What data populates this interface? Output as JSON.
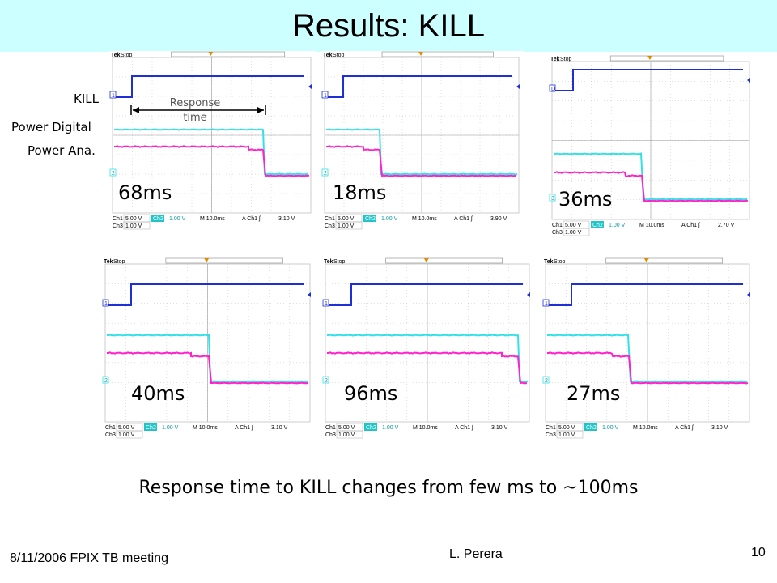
{
  "slide": {
    "title": "Results: KILL",
    "signal_labels": [
      "KILL",
      "Power Digital",
      "Power Ana."
    ],
    "response_annotation": [
      "Response",
      "time"
    ],
    "summary": "Response time to KILL  changes from few ms to ~100ms",
    "footer": {
      "date_meeting": "8/11/2006  FPIX TB meeting",
      "author": "L. Perera",
      "page": "10"
    }
  },
  "colors": {
    "title_bg": "#ccffff",
    "kill_trace": "#1f2fd6",
    "digital_trace": "#33e0e8",
    "analog_trace": "#ff22cc",
    "grid": "#c0c0c0"
  },
  "scopes": [
    {
      "response_time": "68ms",
      "header": {
        "brand": "Tek",
        "state": "Stop"
      },
      "markers": [
        "1",
        "2"
      ],
      "readout": {
        "ch1": "Ch1",
        "ch1_scale": "5.00 V",
        "ch2": "Ch2",
        "ch2_scale": "1.00 V",
        "timebase": "M 10.0ms",
        "trigger": "A  Ch1  ʃ",
        "level": "3.10 V",
        "ch3": "Ch3",
        "ch3_scale": "1.00 V"
      }
    },
    {
      "response_time": "18ms",
      "header": {
        "brand": "Tek",
        "state": "Stop"
      },
      "markers": [
        "1",
        "2"
      ],
      "readout": {
        "ch1": "Ch1",
        "ch1_scale": "5.00 V",
        "ch2": "Ch2",
        "ch2_scale": "1.00 V",
        "timebase": "M 10.0ms",
        "trigger": "A  Ch1  ʃ",
        "level": "3.90 V",
        "ch3": "Ch3",
        "ch3_scale": "1.00 V"
      }
    },
    {
      "response_time": "36ms",
      "header": {
        "brand": "Tek",
        "state": "Stop"
      },
      "markers": [
        "D",
        "3"
      ],
      "readout": {
        "ch1": "Ch1",
        "ch1_scale": "5.00 V",
        "ch2": "Ch2",
        "ch2_scale": "1.00 V",
        "timebase": "M 10.0ms",
        "trigger": "A  Ch1  ʃ",
        "level": "2.70 V",
        "ch3": "Ch3",
        "ch3_scale": "1.00 V"
      }
    },
    {
      "response_time": "40ms",
      "header": {
        "brand": "Tek",
        "state": "Stop"
      },
      "markers": [
        "1",
        "2"
      ],
      "readout": {
        "ch1": "Ch1",
        "ch1_scale": "5.00 V",
        "ch2": "Ch2",
        "ch2_scale": "1.00 V",
        "timebase": "M 10.0ms",
        "trigger": "A  Ch1  ʃ",
        "level": "3.10 V",
        "ch3": "Ch3",
        "ch3_scale": "1.00 V"
      }
    },
    {
      "response_time": "96ms",
      "header": {
        "brand": "Tek",
        "state": "Stop"
      },
      "markers": [
        "1",
        "2"
      ],
      "readout": {
        "ch1": "Ch1",
        "ch1_scale": "5.00 V",
        "ch2": "Ch2",
        "ch2_scale": "1.00 V",
        "timebase": "M 10.0ms",
        "trigger": "A  Ch1  ʃ",
        "level": "3.10 V",
        "ch3": "Ch3",
        "ch3_scale": "1.00 V"
      }
    },
    {
      "response_time": "27ms",
      "header": {
        "brand": "Tek",
        "state": "Stop"
      },
      "markers": [
        "1",
        "2"
      ],
      "readout": {
        "ch1": "Ch1",
        "ch1_scale": "5.00 V",
        "ch2": "Ch2",
        "ch2_scale": "1.00 V",
        "timebase": "M 10.0ms",
        "trigger": "A  Ch1  ʃ",
        "level": "3.10 V",
        "ch3": "Ch3",
        "ch3_scale": "1.00 V"
      }
    }
  ]
}
